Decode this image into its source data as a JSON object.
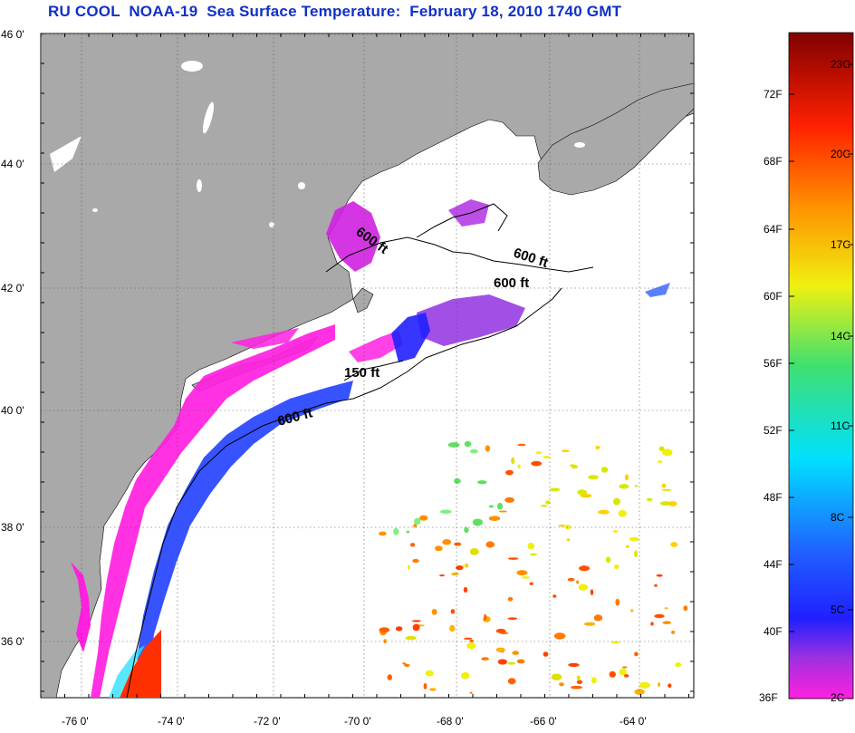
{
  "title": "RU COOL  NOAA-19  Sea Surface Temperature:  February 18, 2010 1740 GMT",
  "axes": {
    "x_ticks": [
      "-76 0'",
      "-74 0'",
      "-72 0'",
      "-70 0'",
      "-68 0'",
      "-66 0'",
      "-64 0'"
    ],
    "y_ticks": [
      "46 0'",
      "44 0'",
      "42 0'",
      "40 0'",
      "38 0'",
      "36 0'"
    ]
  },
  "contours": [
    {
      "label": "600 ft"
    },
    {
      "label": "600 ft"
    },
    {
      "label": "600 ft"
    },
    {
      "label": "150 ft"
    },
    {
      "label": "600 ft"
    }
  ],
  "colorbar": {
    "fahrenheit": [
      "72F",
      "68F",
      "64F",
      "60F",
      "56F",
      "52F",
      "48F",
      "44F",
      "40F",
      "36F"
    ],
    "celsius": [
      "23C",
      "20C",
      "17C",
      "14C",
      "11C",
      "8C",
      "5C",
      "2C"
    ]
  },
  "colors": {
    "land": "#a9a9a9",
    "title": "#1030c8",
    "cold": "#ff20e0",
    "warm": "#ff4000"
  }
}
